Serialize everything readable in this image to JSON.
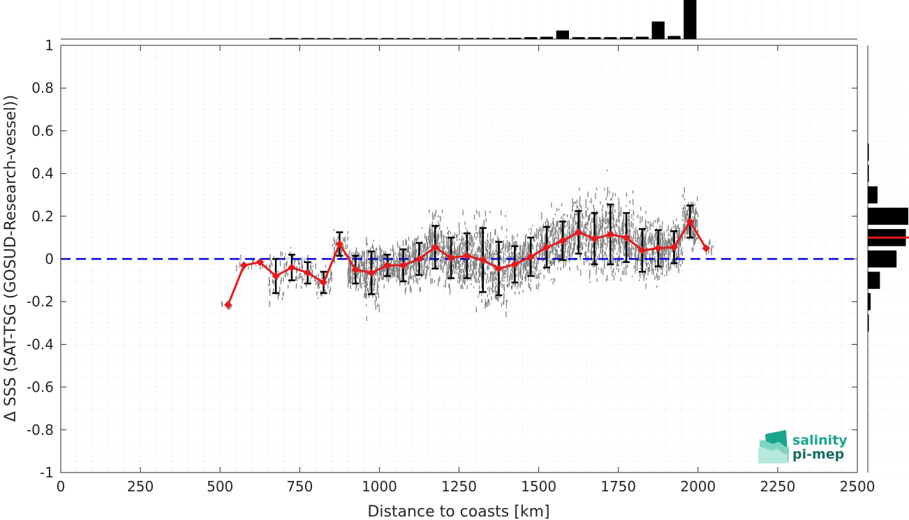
{
  "chart_data": {
    "type": "scatter",
    "title": "",
    "xlabel": "Distance to coasts [km]",
    "ylabel": "Δ SSS (SAT-TSG (GOSUD-Research-vessel))",
    "xlim": [
      0,
      2500
    ],
    "ylim": [
      -1,
      1
    ],
    "x_ticks": [
      "0",
      "250",
      "500",
      "750",
      "1000",
      "1250",
      "1500",
      "1750",
      "2000",
      "2250",
      "2500"
    ],
    "y_ticks": [
      "-1",
      "-0.8",
      "-0.6",
      "-0.4",
      "-0.2",
      "0",
      "0.2",
      "0.4",
      "0.6",
      "0.8",
      "1"
    ],
    "grid": true,
    "reference_line": {
      "y": 0,
      "style": "dashed",
      "color": "#0000dd"
    },
    "series": [
      {
        "x": [
          525,
          575,
          625,
          675,
          725,
          775,
          825,
          875,
          925,
          975,
          1025,
          1075,
          1125,
          1175,
          1225,
          1275,
          1325,
          1375,
          1425,
          1475,
          1525,
          1575,
          1625,
          1675,
          1725,
          1775,
          1825,
          1875,
          1925,
          1975,
          2025
        ],
        "mean": [
          -0.215,
          -0.03,
          -0.015,
          -0.08,
          -0.04,
          -0.065,
          -0.11,
          0.07,
          -0.05,
          -0.065,
          -0.03,
          -0.03,
          0.0,
          0.055,
          0.005,
          0.015,
          -0.005,
          -0.045,
          -0.025,
          0.01,
          0.055,
          0.085,
          0.125,
          0.095,
          0.115,
          0.1,
          0.04,
          0.05,
          0.055,
          0.175,
          0.05
        ],
        "std": [
          0.01,
          0.01,
          0.01,
          0.08,
          0.06,
          0.05,
          0.05,
          0.055,
          0.065,
          0.1,
          0.05,
          0.075,
          0.075,
          0.1,
          0.095,
          0.105,
          0.15,
          0.125,
          0.085,
          0.09,
          0.095,
          0.09,
          0.1,
          0.12,
          0.14,
          0.115,
          0.1,
          0.085,
          0.075,
          0.075,
          0.0
        ],
        "color": "#e41a1c"
      }
    ],
    "scatter_color": "#808080",
    "top_histogram": {
      "x": [
        525,
        575,
        625,
        675,
        725,
        775,
        825,
        875,
        925,
        975,
        1025,
        1075,
        1125,
        1175,
        1225,
        1275,
        1325,
        1375,
        1425,
        1475,
        1525,
        1575,
        1625,
        1675,
        1725,
        1775,
        1825,
        1875,
        1925,
        1975,
        2025
      ],
      "counts": [
        0,
        0,
        0,
        0.015,
        0.015,
        0.015,
        0.015,
        0.015,
        0.015,
        0.02,
        0.02,
        0.02,
        0.025,
        0.025,
        0.025,
        0.025,
        0.03,
        0.03,
        0.035,
        0.05,
        0.06,
        0.22,
        0.05,
        0.05,
        0.05,
        0.05,
        0.06,
        0.45,
        0.08,
        1.0,
        0
      ]
    },
    "right_histogram": {
      "y": [
        0.5,
        0.4,
        0.3,
        0.2,
        0.1,
        0.0,
        -0.1,
        -0.2,
        -0.3
      ],
      "counts": [
        0.01,
        0.01,
        0.24,
        1.0,
        0.94,
        0.71,
        0.3,
        0.07,
        0.01
      ],
      "median_line": 0.1
    }
  },
  "logo": {
    "line1": "salinity",
    "line2": "pi-mep"
  }
}
